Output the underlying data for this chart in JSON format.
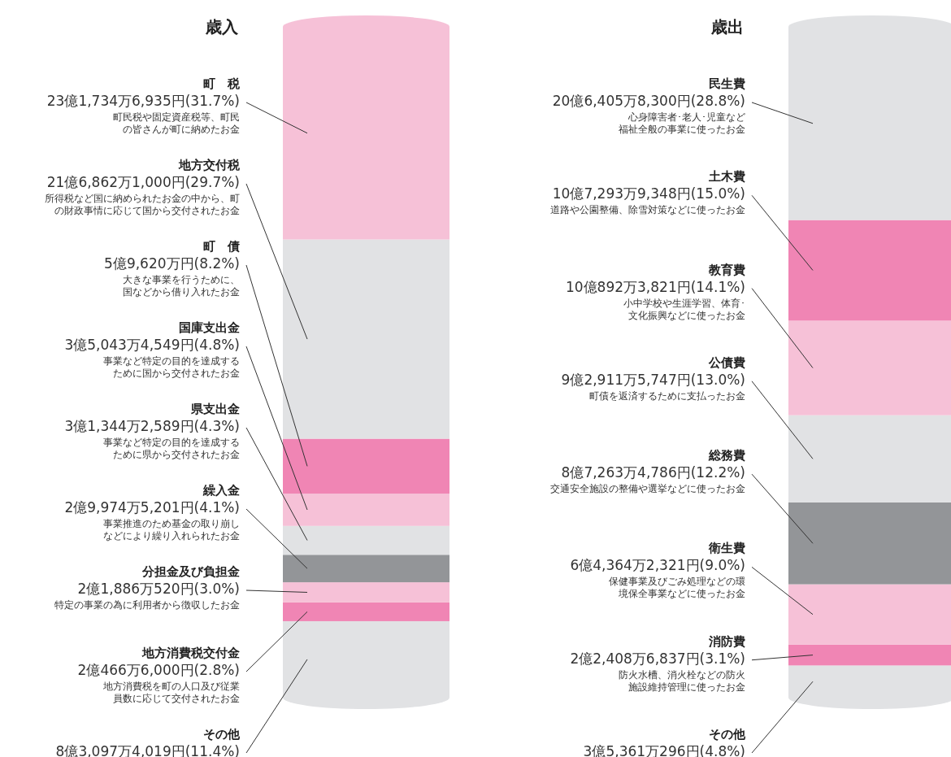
{
  "chart_data": [
    {
      "type": "bar",
      "title": "歳入",
      "stacked": true,
      "categories": [
        null
      ],
      "series": [
        {
          "name": "その他",
          "color": "#e1e2e4",
          "values": [
            11.4
          ],
          "value_labels": [
            "8億3,097万4,019円(11.4%)"
          ]
        },
        {
          "name": "地方消費税交付金",
          "color": "#f085b4",
          "values": [
            2.8
          ],
          "value_labels": [
            "2億466万6,000円(2.8%)"
          ]
        },
        {
          "name": "分担金及び負担金",
          "color": "#f6c1d7",
          "values": [
            3.0
          ],
          "value_labels": [
            "2億1,886万520円(3.0%)"
          ]
        },
        {
          "name": "繰入金",
          "color": "#939598",
          "values": [
            4.1
          ],
          "value_labels": [
            "2億9,974万5,201円(4.1%)"
          ]
        },
        {
          "name": "県支出金",
          "color": "#e1e2e4",
          "values": [
            4.3
          ],
          "value_labels": [
            "3億1,344万2,589円(4.3%)"
          ]
        },
        {
          "name": "国庫支出金",
          "color": "#f6c1d7",
          "values": [
            4.8
          ],
          "value_labels": [
            "3億5,043万4,549円(4.8%)"
          ]
        },
        {
          "name": "町　債",
          "color": "#f085b4",
          "values": [
            8.2
          ],
          "value_labels": [
            "5億9,620万円(8.2%)"
          ]
        },
        {
          "name": "地方交付税",
          "color": "#e1e2e4",
          "values": [
            29.7
          ],
          "value_labels": [
            "21億6,862万1,000円(29.7%)"
          ]
        },
        {
          "name": "町　税",
          "color": "#f6c1d7",
          "values": [
            31.7
          ],
          "value_labels": [
            "23億1,734万6,935円(31.7%)"
          ]
        }
      ],
      "annotations": [
        "町民税や固定資産税等、町民の皆さんが町に納めたお金",
        "所得税など国に納められたお金の中から、町の財政事情に応じて国から交付されたお金",
        "大きな事業を行うために、国などから借り入れたお金",
        "事業など特定の目的を達成するために国から交付されたお金",
        "事業など特定の目的を達成するために県から交付されたお金",
        "事業推進のため基金の取り崩しなどにより繰り入れられたお金",
        "特定の事業の為に利用者から徴収したお金",
        "地方消費税を町の人口及び従業員数に応じて交付されたお金"
      ]
    },
    {
      "type": "bar",
      "title": "歳出",
      "stacked": true,
      "categories": [
        null
      ],
      "series": [
        {
          "name": "その他",
          "color": "#e1e2e4",
          "values": [
            4.8
          ],
          "value_labels": [
            "3億5,361万296円(4.8%)"
          ]
        },
        {
          "name": "消防費",
          "color": "#f085b4",
          "values": [
            3.1
          ],
          "value_labels": [
            "2億2,408万6,837円(3.1%)"
          ]
        },
        {
          "name": "衛生費",
          "color": "#f6c1d7",
          "values": [
            9.0
          ],
          "value_labels": [
            "6億4,364万2,321円(9.0%)"
          ]
        },
        {
          "name": "総務費",
          "color": "#939598",
          "values": [
            12.2
          ],
          "value_labels": [
            "8億7,263万4,786円(12.2%)"
          ]
        },
        {
          "name": "公債費",
          "color": "#e1e2e4",
          "values": [
            13.0
          ],
          "value_labels": [
            "9億2,911万5,747円(13.0%)"
          ]
        },
        {
          "name": "教育費",
          "color": "#f6c1d7",
          "values": [
            14.1
          ],
          "value_labels": [
            "10億892万3,821円(14.1%)"
          ]
        },
        {
          "name": "土木費",
          "color": "#f085b4",
          "values": [
            15.0
          ],
          "value_labels": [
            "10億7,293万9,348円(15.0%)"
          ]
        },
        {
          "name": "民生費",
          "color": "#e1e2e4",
          "values": [
            28.8
          ],
          "value_labels": [
            "20億6,405万8,300円(28.8%)"
          ]
        }
      ],
      "annotations": [
        "心身障害者･老人･児童など福祉全般の事業に使ったお金",
        "道路や公園整備、除雪対策などに使ったお金",
        "小中学校や生涯学習、体育･文化振興などに使ったお金",
        "町債を返済するために支払ったお金",
        "交通安全施設の整備や選挙などに使ったお金",
        "保健事業及びごみ処理などの環境保全事業などに使ったお金",
        "防火水槽、消火栓などの防火施設維持管理に使ったお金"
      ]
    }
  ]
}
